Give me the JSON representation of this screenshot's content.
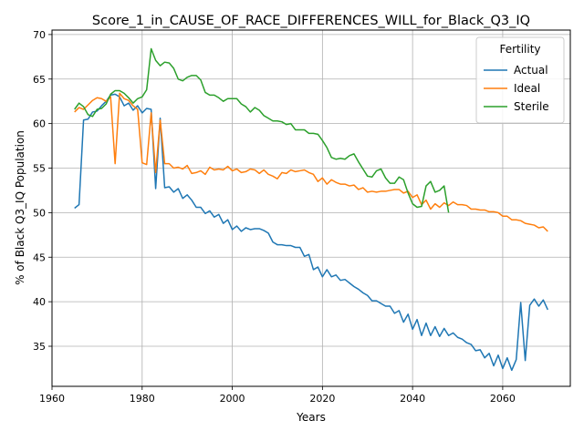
{
  "chart_data": {
    "type": "line",
    "title": "Score_1_in_CAUSE_OF_RACE_DIFFERENCES_WILL_for_Black_Q3_IQ",
    "xlabel": "Years",
    "ylabel": "% of Black Q3_IQ Population",
    "xlim": [
      1960,
      2075
    ],
    "ylim": [
      30.5,
      70.5
    ],
    "xticks": [
      1960,
      1980,
      2000,
      2020,
      2040,
      2060
    ],
    "yticks": [
      35,
      40,
      45,
      50,
      55,
      60,
      65,
      70
    ],
    "grid": true,
    "legend": {
      "title": "Fertility",
      "placement": "top-right"
    },
    "series": [
      {
        "name": "Actual",
        "color": "#1f77b4",
        "points": [
          [
            1965,
            50.5
          ],
          [
            1966,
            50.9
          ],
          [
            1967,
            60.4
          ],
          [
            1968,
            60.5
          ],
          [
            1969,
            61.3
          ],
          [
            1970,
            61.4
          ],
          [
            1971,
            62.0
          ],
          [
            1972,
            62.5
          ],
          [
            1973,
            63.2
          ],
          [
            1974,
            63.3
          ],
          [
            1975,
            63.0
          ],
          [
            1976,
            62.0
          ],
          [
            1977,
            62.3
          ],
          [
            1978,
            61.5
          ],
          [
            1979,
            62.0
          ],
          [
            1980,
            61.2
          ],
          [
            1981,
            61.7
          ],
          [
            1982,
            61.6
          ],
          [
            1983,
            52.7
          ],
          [
            1984,
            60.6
          ],
          [
            1985,
            52.8
          ],
          [
            1986,
            52.9
          ],
          [
            1987,
            52.3
          ],
          [
            1988,
            52.7
          ],
          [
            1989,
            51.6
          ],
          [
            1990,
            52.0
          ],
          [
            1991,
            51.4
          ],
          [
            1992,
            50.6
          ],
          [
            1993,
            50.6
          ],
          [
            1994,
            49.9
          ],
          [
            1995,
            50.2
          ],
          [
            1996,
            49.5
          ],
          [
            1997,
            49.8
          ],
          [
            1998,
            48.8
          ],
          [
            1999,
            49.2
          ],
          [
            2000,
            48.1
          ],
          [
            2001,
            48.5
          ],
          [
            2002,
            47.9
          ],
          [
            2003,
            48.3
          ],
          [
            2004,
            48.1
          ],
          [
            2005,
            48.2
          ],
          [
            2006,
            48.2
          ],
          [
            2007,
            48.0
          ],
          [
            2008,
            47.7
          ],
          [
            2009,
            46.7
          ],
          [
            2010,
            46.4
          ],
          [
            2011,
            46.4
          ],
          [
            2012,
            46.3
          ],
          [
            2013,
            46.3
          ],
          [
            2014,
            46.1
          ],
          [
            2015,
            46.1
          ],
          [
            2016,
            45.1
          ],
          [
            2017,
            45.3
          ],
          [
            2018,
            43.6
          ],
          [
            2019,
            43.9
          ],
          [
            2020,
            42.8
          ],
          [
            2021,
            43.6
          ],
          [
            2022,
            42.8
          ],
          [
            2023,
            43.0
          ],
          [
            2024,
            42.4
          ],
          [
            2025,
            42.5
          ],
          [
            2026,
            42.1
          ],
          [
            2027,
            41.7
          ],
          [
            2028,
            41.4
          ],
          [
            2029,
            41.0
          ],
          [
            2030,
            40.7
          ],
          [
            2031,
            40.1
          ],
          [
            2032,
            40.1
          ],
          [
            2033,
            39.8
          ],
          [
            2034,
            39.5
          ],
          [
            2035,
            39.5
          ],
          [
            2036,
            38.7
          ],
          [
            2037,
            39.0
          ],
          [
            2038,
            37.7
          ],
          [
            2039,
            38.6
          ],
          [
            2040,
            36.9
          ],
          [
            2041,
            38.0
          ],
          [
            2042,
            36.2
          ],
          [
            2043,
            37.6
          ],
          [
            2044,
            36.2
          ],
          [
            2045,
            37.2
          ],
          [
            2046,
            36.1
          ],
          [
            2047,
            37.0
          ],
          [
            2048,
            36.2
          ],
          [
            2049,
            36.5
          ],
          [
            2050,
            36.0
          ],
          [
            2051,
            35.8
          ],
          [
            2052,
            35.4
          ],
          [
            2053,
            35.2
          ],
          [
            2054,
            34.5
          ],
          [
            2055,
            34.6
          ],
          [
            2056,
            33.7
          ],
          [
            2057,
            34.2
          ],
          [
            2058,
            32.8
          ],
          [
            2059,
            34.0
          ],
          [
            2060,
            32.5
          ],
          [
            2061,
            33.7
          ],
          [
            2062,
            32.3
          ],
          [
            2063,
            33.5
          ],
          [
            2064,
            39.9
          ],
          [
            2065,
            33.4
          ],
          [
            2066,
            39.6
          ],
          [
            2067,
            40.3
          ],
          [
            2068,
            39.5
          ],
          [
            2069,
            40.2
          ],
          [
            2070,
            39.1
          ]
        ]
      },
      {
        "name": "Ideal",
        "color": "#ff7f0e",
        "points": [
          [
            1965,
            61.3
          ],
          [
            1966,
            61.8
          ],
          [
            1967,
            61.6
          ],
          [
            1968,
            62.1
          ],
          [
            1969,
            62.6
          ],
          [
            1970,
            62.9
          ],
          [
            1971,
            62.8
          ],
          [
            1972,
            62.5
          ],
          [
            1973,
            63.0
          ],
          [
            1974,
            55.5
          ],
          [
            1975,
            63.4
          ],
          [
            1976,
            62.8
          ],
          [
            1977,
            62.6
          ],
          [
            1978,
            62.0
          ],
          [
            1979,
            61.6
          ],
          [
            1980,
            55.6
          ],
          [
            1981,
            55.4
          ],
          [
            1982,
            61.2
          ],
          [
            1983,
            54.5
          ],
          [
            1984,
            60.4
          ],
          [
            1985,
            55.5
          ],
          [
            1986,
            55.5
          ],
          [
            1987,
            55.0
          ],
          [
            1988,
            55.1
          ],
          [
            1989,
            54.9
          ],
          [
            1990,
            55.3
          ],
          [
            1991,
            54.4
          ],
          [
            1992,
            54.5
          ],
          [
            1993,
            54.7
          ],
          [
            1994,
            54.3
          ],
          [
            1995,
            55.1
          ],
          [
            1996,
            54.8
          ],
          [
            1997,
            54.9
          ],
          [
            1998,
            54.8
          ],
          [
            1999,
            55.2
          ],
          [
            2000,
            54.7
          ],
          [
            2001,
            54.9
          ],
          [
            2002,
            54.5
          ],
          [
            2003,
            54.6
          ],
          [
            2004,
            54.9
          ],
          [
            2005,
            54.8
          ],
          [
            2006,
            54.4
          ],
          [
            2007,
            54.8
          ],
          [
            2008,
            54.3
          ],
          [
            2009,
            54.1
          ],
          [
            2010,
            53.8
          ],
          [
            2011,
            54.5
          ],
          [
            2012,
            54.4
          ],
          [
            2013,
            54.8
          ],
          [
            2014,
            54.6
          ],
          [
            2015,
            54.7
          ],
          [
            2016,
            54.8
          ],
          [
            2017,
            54.5
          ],
          [
            2018,
            54.3
          ],
          [
            2019,
            53.5
          ],
          [
            2020,
            53.9
          ],
          [
            2021,
            53.2
          ],
          [
            2022,
            53.7
          ],
          [
            2023,
            53.4
          ],
          [
            2024,
            53.2
          ],
          [
            2025,
            53.2
          ],
          [
            2026,
            53.0
          ],
          [
            2027,
            53.1
          ],
          [
            2028,
            52.6
          ],
          [
            2029,
            52.8
          ],
          [
            2030,
            52.3
          ],
          [
            2031,
            52.4
          ],
          [
            2032,
            52.3
          ],
          [
            2033,
            52.4
          ],
          [
            2034,
            52.4
          ],
          [
            2035,
            52.5
          ],
          [
            2036,
            52.6
          ],
          [
            2037,
            52.6
          ],
          [
            2038,
            52.2
          ],
          [
            2039,
            52.4
          ],
          [
            2040,
            51.7
          ],
          [
            2041,
            52.0
          ],
          [
            2042,
            50.9
          ],
          [
            2043,
            51.4
          ],
          [
            2044,
            50.4
          ],
          [
            2045,
            51.0
          ],
          [
            2046,
            50.6
          ],
          [
            2047,
            51.1
          ],
          [
            2048,
            50.8
          ],
          [
            2049,
            51.2
          ],
          [
            2050,
            50.9
          ],
          [
            2051,
            50.9
          ],
          [
            2052,
            50.8
          ],
          [
            2053,
            50.4
          ],
          [
            2054,
            50.4
          ],
          [
            2055,
            50.3
          ],
          [
            2056,
            50.3
          ],
          [
            2057,
            50.1
          ],
          [
            2058,
            50.1
          ],
          [
            2059,
            50.0
          ],
          [
            2060,
            49.6
          ],
          [
            2061,
            49.6
          ],
          [
            2062,
            49.2
          ],
          [
            2063,
            49.2
          ],
          [
            2064,
            49.1
          ],
          [
            2065,
            48.8
          ],
          [
            2066,
            48.7
          ],
          [
            2067,
            48.6
          ],
          [
            2068,
            48.3
          ],
          [
            2069,
            48.4
          ],
          [
            2070,
            47.9
          ]
        ]
      },
      {
        "name": "Sterile",
        "color": "#2ca02c",
        "points": [
          [
            1965,
            61.6
          ],
          [
            1966,
            62.3
          ],
          [
            1967,
            61.9
          ],
          [
            1968,
            61.0
          ],
          [
            1969,
            60.8
          ],
          [
            1970,
            61.6
          ],
          [
            1971,
            61.7
          ],
          [
            1972,
            62.2
          ],
          [
            1973,
            63.3
          ],
          [
            1974,
            63.7
          ],
          [
            1975,
            63.7
          ],
          [
            1976,
            63.4
          ],
          [
            1977,
            62.9
          ],
          [
            1978,
            62.3
          ],
          [
            1979,
            62.8
          ],
          [
            1980,
            63.0
          ],
          [
            1981,
            63.8
          ],
          [
            1982,
            68.4
          ],
          [
            1983,
            67.1
          ],
          [
            1984,
            66.5
          ],
          [
            1985,
            66.9
          ],
          [
            1986,
            66.8
          ],
          [
            1987,
            66.2
          ],
          [
            1988,
            65.0
          ],
          [
            1989,
            64.8
          ],
          [
            1990,
            65.2
          ],
          [
            1991,
            65.4
          ],
          [
            1992,
            65.4
          ],
          [
            1993,
            64.9
          ],
          [
            1994,
            63.5
          ],
          [
            1995,
            63.2
          ],
          [
            1996,
            63.2
          ],
          [
            1997,
            62.9
          ],
          [
            1998,
            62.5
          ],
          [
            1999,
            62.8
          ],
          [
            2000,
            62.8
          ],
          [
            2001,
            62.8
          ],
          [
            2002,
            62.2
          ],
          [
            2003,
            61.9
          ],
          [
            2004,
            61.3
          ],
          [
            2005,
            61.8
          ],
          [
            2006,
            61.5
          ],
          [
            2007,
            60.9
          ],
          [
            2008,
            60.6
          ],
          [
            2009,
            60.3
          ],
          [
            2010,
            60.3
          ],
          [
            2011,
            60.2
          ],
          [
            2012,
            59.9
          ],
          [
            2013,
            60.0
          ],
          [
            2014,
            59.3
          ],
          [
            2015,
            59.3
          ],
          [
            2016,
            59.3
          ],
          [
            2017,
            58.9
          ],
          [
            2018,
            58.9
          ],
          [
            2019,
            58.8
          ],
          [
            2020,
            58.1
          ],
          [
            2021,
            57.3
          ],
          [
            2022,
            56.2
          ],
          [
            2023,
            56.0
          ],
          [
            2024,
            56.1
          ],
          [
            2025,
            56.0
          ],
          [
            2026,
            56.4
          ],
          [
            2027,
            56.6
          ],
          [
            2028,
            55.7
          ],
          [
            2029,
            54.9
          ],
          [
            2030,
            54.1
          ],
          [
            2031,
            54.0
          ],
          [
            2032,
            54.7
          ],
          [
            2033,
            54.9
          ],
          [
            2034,
            53.9
          ],
          [
            2035,
            53.3
          ],
          [
            2036,
            53.3
          ],
          [
            2037,
            54.0
          ],
          [
            2038,
            53.7
          ],
          [
            2039,
            52.2
          ],
          [
            2040,
            51.0
          ],
          [
            2041,
            50.6
          ],
          [
            2042,
            50.7
          ],
          [
            2043,
            53.0
          ],
          [
            2044,
            53.5
          ],
          [
            2045,
            52.3
          ],
          [
            2046,
            52.5
          ],
          [
            2047,
            53.0
          ],
          [
            2048,
            50.0
          ]
        ]
      }
    ]
  }
}
